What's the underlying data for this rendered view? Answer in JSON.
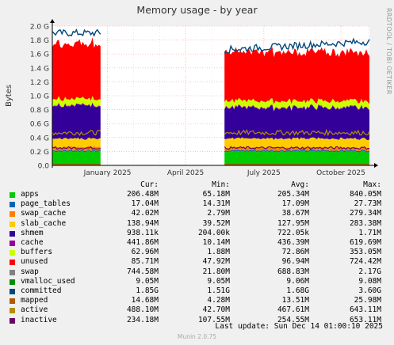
{
  "title": "Memory usage - by year",
  "side_label": "RRDTOOL / TOBI OETIKER",
  "last_update": "Last update: Sun Dec 14 01:00:10 2025",
  "footer": "Munin 2.0.75",
  "legend_headers": {
    "cur": "Cur:",
    "min": "Min:",
    "avg": "Avg:",
    "max": "Max:"
  },
  "legend": [
    {
      "name": "apps",
      "color": "#00cc00",
      "cur": "206.48M",
      "min": "65.18M",
      "avg": "205.34M",
      "max": "840.05M"
    },
    {
      "name": "page_tables",
      "color": "#0066b3",
      "cur": "17.04M",
      "min": "14.31M",
      "avg": "17.09M",
      "max": "27.73M"
    },
    {
      "name": "swap_cache",
      "color": "#ff8000",
      "cur": "42.02M",
      "min": "2.79M",
      "avg": "38.67M",
      "max": "279.34M"
    },
    {
      "name": "slab_cache",
      "color": "#ffcc00",
      "cur": "138.94M",
      "min": "39.52M",
      "avg": "127.95M",
      "max": "283.38M"
    },
    {
      "name": "shmem",
      "color": "#330099",
      "cur": "938.11k",
      "min": "204.00k",
      "avg": "722.05k",
      "max": "1.71M"
    },
    {
      "name": "cache",
      "color": "#990099",
      "cur": "441.86M",
      "min": "10.14M",
      "avg": "436.39M",
      "max": "619.69M"
    },
    {
      "name": "buffers",
      "color": "#ccff00",
      "cur": "62.96M",
      "min": "1.88M",
      "avg": "72.86M",
      "max": "353.05M"
    },
    {
      "name": "unused",
      "color": "#ff0000",
      "cur": "85.71M",
      "min": "47.92M",
      "avg": "96.94M",
      "max": "724.42M"
    },
    {
      "name": "swap",
      "color": "#808080",
      "cur": "744.58M",
      "min": "21.80M",
      "avg": "688.83M",
      "max": "2.17G"
    },
    {
      "name": "vmalloc_used",
      "color": "#008f00",
      "cur": "9.05M",
      "min": "9.05M",
      "avg": "9.06M",
      "max": "9.08M"
    },
    {
      "name": "committed",
      "color": "#00487d",
      "cur": "1.85G",
      "min": "1.51G",
      "avg": "1.68G",
      "max": "3.60G"
    },
    {
      "name": "mapped",
      "color": "#b35a00",
      "cur": "14.68M",
      "min": "4.28M",
      "avg": "13.51M",
      "max": "25.98M"
    },
    {
      "name": "active",
      "color": "#b38f00",
      "cur": "488.10M",
      "min": "42.70M",
      "avg": "467.61M",
      "max": "643.11M"
    },
    {
      "name": "inactive",
      "color": "#6b006b",
      "cur": "234.18M",
      "min": "107.55M",
      "avg": "254.55M",
      "max": "653.11M"
    }
  ],
  "chart_data": {
    "type": "area",
    "ylabel": "Bytes",
    "ylim": [
      0,
      2.0
    ],
    "yunit": "G",
    "yticks": [
      "0.0",
      "0.2 G",
      "0.4 G",
      "0.6 G",
      "0.8 G",
      "1.0 G",
      "1.2 G",
      "1.4 G",
      "1.6 G",
      "1.8 G",
      "2.0 G"
    ],
    "xticks": [
      "January 2025",
      "April 2025",
      "July 2025",
      "October 2025"
    ],
    "segments": [
      {
        "range": "Dec 2024 - Jan 2025",
        "stack": [
          {
            "name": "apps",
            "color": "#00cc00",
            "value": 0.2
          },
          {
            "name": "page_tables",
            "color": "#0066b3",
            "value": 0.017
          },
          {
            "name": "swap_cache",
            "color": "#ff8000",
            "value": 0.05
          },
          {
            "name": "slab_cache",
            "color": "#ffcc00",
            "value": 0.12
          },
          {
            "name": "cache",
            "color": "#330099",
            "value": 0.48
          },
          {
            "name": "buffers",
            "color": "#990099",
            "value": 0.01
          },
          {
            "name": "unused",
            "color": "#ccff00",
            "value": 0.09
          },
          {
            "name": "swap",
            "color": "#ff0000",
            "value": 0.8
          }
        ],
        "committed": 1.9
      },
      {
        "range": "Jun 2025 - Dec 2025",
        "stack": [
          {
            "name": "apps",
            "color": "#00cc00",
            "value": 0.2
          },
          {
            "name": "page_tables",
            "color": "#0066b3",
            "value": 0.017
          },
          {
            "name": "swap_cache",
            "color": "#ff8000",
            "value": 0.04
          },
          {
            "name": "slab_cache",
            "color": "#ffcc00",
            "value": 0.13
          },
          {
            "name": "cache",
            "color": "#330099",
            "value": 0.44
          },
          {
            "name": "buffers",
            "color": "#990099",
            "value": 0.01
          },
          {
            "name": "unused",
            "color": "#ccff00",
            "value": 0.09
          },
          {
            "name": "swap",
            "color": "#ff0000",
            "value": 0.7
          }
        ],
        "committed": 1.7
      }
    ],
    "lines": [
      {
        "name": "mapped",
        "color": "#b35a00",
        "value": 0.013
      },
      {
        "name": "active",
        "color": "#b38f00",
        "value": 0.47
      },
      {
        "name": "inactive",
        "color": "#6b006b",
        "value": 0.25
      }
    ]
  }
}
